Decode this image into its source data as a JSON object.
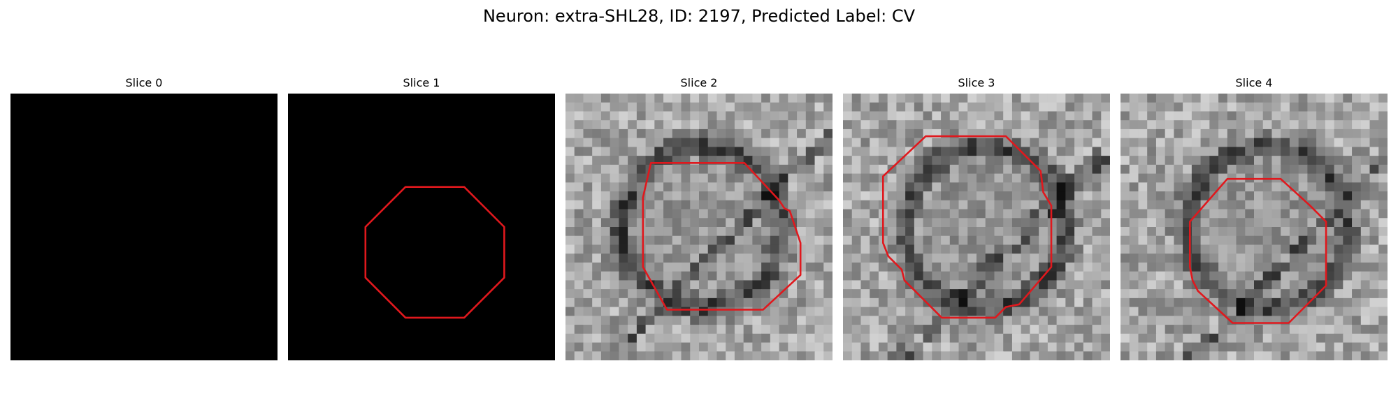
{
  "figure": {
    "title": "Neuron: extra-SHL28, ID: 2197, Predicted Label: CV"
  },
  "contour_color": "#e0181d",
  "slices": [
    {
      "title": "Slice 0",
      "texture": "empty",
      "has_contour": false
    },
    {
      "title": "Slice 1",
      "texture": "empty",
      "has_contour": true
    },
    {
      "title": "Slice 2",
      "texture": "em-grayscale",
      "has_contour": true
    },
    {
      "title": "Slice 3",
      "texture": "em-grayscale",
      "has_contour": true
    },
    {
      "title": "Slice 4",
      "texture": "em-grayscale",
      "has_contour": true
    }
  ]
}
